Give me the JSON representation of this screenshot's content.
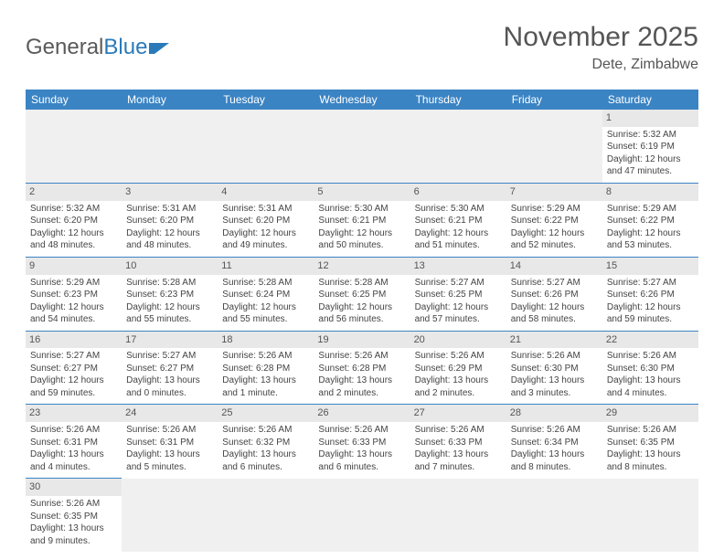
{
  "logo": {
    "part1": "General",
    "part2": "Blue"
  },
  "title": "November 2025",
  "location": "Dete, Zimbabwe",
  "colors": {
    "header_bg": "#3b84c4",
    "header_fg": "#ffffff",
    "daynum_bg": "#e8e8e8",
    "row_divider": "#3b84c4",
    "empty_bg": "#f0f0f0",
    "logo_blue": "#2a7ab9",
    "logo_gray": "#5a5a5a"
  },
  "day_headers": [
    "Sunday",
    "Monday",
    "Tuesday",
    "Wednesday",
    "Thursday",
    "Friday",
    "Saturday"
  ],
  "weeks": [
    [
      null,
      null,
      null,
      null,
      null,
      null,
      {
        "n": "1",
        "sunrise": "Sunrise: 5:32 AM",
        "sunset": "Sunset: 6:19 PM",
        "daylight": "Daylight: 12 hours and 47 minutes."
      }
    ],
    [
      {
        "n": "2",
        "sunrise": "Sunrise: 5:32 AM",
        "sunset": "Sunset: 6:20 PM",
        "daylight": "Daylight: 12 hours and 48 minutes."
      },
      {
        "n": "3",
        "sunrise": "Sunrise: 5:31 AM",
        "sunset": "Sunset: 6:20 PM",
        "daylight": "Daylight: 12 hours and 48 minutes."
      },
      {
        "n": "4",
        "sunrise": "Sunrise: 5:31 AM",
        "sunset": "Sunset: 6:20 PM",
        "daylight": "Daylight: 12 hours and 49 minutes."
      },
      {
        "n": "5",
        "sunrise": "Sunrise: 5:30 AM",
        "sunset": "Sunset: 6:21 PM",
        "daylight": "Daylight: 12 hours and 50 minutes."
      },
      {
        "n": "6",
        "sunrise": "Sunrise: 5:30 AM",
        "sunset": "Sunset: 6:21 PM",
        "daylight": "Daylight: 12 hours and 51 minutes."
      },
      {
        "n": "7",
        "sunrise": "Sunrise: 5:29 AM",
        "sunset": "Sunset: 6:22 PM",
        "daylight": "Daylight: 12 hours and 52 minutes."
      },
      {
        "n": "8",
        "sunrise": "Sunrise: 5:29 AM",
        "sunset": "Sunset: 6:22 PM",
        "daylight": "Daylight: 12 hours and 53 minutes."
      }
    ],
    [
      {
        "n": "9",
        "sunrise": "Sunrise: 5:29 AM",
        "sunset": "Sunset: 6:23 PM",
        "daylight": "Daylight: 12 hours and 54 minutes."
      },
      {
        "n": "10",
        "sunrise": "Sunrise: 5:28 AM",
        "sunset": "Sunset: 6:23 PM",
        "daylight": "Daylight: 12 hours and 55 minutes."
      },
      {
        "n": "11",
        "sunrise": "Sunrise: 5:28 AM",
        "sunset": "Sunset: 6:24 PM",
        "daylight": "Daylight: 12 hours and 55 minutes."
      },
      {
        "n": "12",
        "sunrise": "Sunrise: 5:28 AM",
        "sunset": "Sunset: 6:25 PM",
        "daylight": "Daylight: 12 hours and 56 minutes."
      },
      {
        "n": "13",
        "sunrise": "Sunrise: 5:27 AM",
        "sunset": "Sunset: 6:25 PM",
        "daylight": "Daylight: 12 hours and 57 minutes."
      },
      {
        "n": "14",
        "sunrise": "Sunrise: 5:27 AM",
        "sunset": "Sunset: 6:26 PM",
        "daylight": "Daylight: 12 hours and 58 minutes."
      },
      {
        "n": "15",
        "sunrise": "Sunrise: 5:27 AM",
        "sunset": "Sunset: 6:26 PM",
        "daylight": "Daylight: 12 hours and 59 minutes."
      }
    ],
    [
      {
        "n": "16",
        "sunrise": "Sunrise: 5:27 AM",
        "sunset": "Sunset: 6:27 PM",
        "daylight": "Daylight: 12 hours and 59 minutes."
      },
      {
        "n": "17",
        "sunrise": "Sunrise: 5:27 AM",
        "sunset": "Sunset: 6:27 PM",
        "daylight": "Daylight: 13 hours and 0 minutes."
      },
      {
        "n": "18",
        "sunrise": "Sunrise: 5:26 AM",
        "sunset": "Sunset: 6:28 PM",
        "daylight": "Daylight: 13 hours and 1 minute."
      },
      {
        "n": "19",
        "sunrise": "Sunrise: 5:26 AM",
        "sunset": "Sunset: 6:28 PM",
        "daylight": "Daylight: 13 hours and 2 minutes."
      },
      {
        "n": "20",
        "sunrise": "Sunrise: 5:26 AM",
        "sunset": "Sunset: 6:29 PM",
        "daylight": "Daylight: 13 hours and 2 minutes."
      },
      {
        "n": "21",
        "sunrise": "Sunrise: 5:26 AM",
        "sunset": "Sunset: 6:30 PM",
        "daylight": "Daylight: 13 hours and 3 minutes."
      },
      {
        "n": "22",
        "sunrise": "Sunrise: 5:26 AM",
        "sunset": "Sunset: 6:30 PM",
        "daylight": "Daylight: 13 hours and 4 minutes."
      }
    ],
    [
      {
        "n": "23",
        "sunrise": "Sunrise: 5:26 AM",
        "sunset": "Sunset: 6:31 PM",
        "daylight": "Daylight: 13 hours and 4 minutes."
      },
      {
        "n": "24",
        "sunrise": "Sunrise: 5:26 AM",
        "sunset": "Sunset: 6:31 PM",
        "daylight": "Daylight: 13 hours and 5 minutes."
      },
      {
        "n": "25",
        "sunrise": "Sunrise: 5:26 AM",
        "sunset": "Sunset: 6:32 PM",
        "daylight": "Daylight: 13 hours and 6 minutes."
      },
      {
        "n": "26",
        "sunrise": "Sunrise: 5:26 AM",
        "sunset": "Sunset: 6:33 PM",
        "daylight": "Daylight: 13 hours and 6 minutes."
      },
      {
        "n": "27",
        "sunrise": "Sunrise: 5:26 AM",
        "sunset": "Sunset: 6:33 PM",
        "daylight": "Daylight: 13 hours and 7 minutes."
      },
      {
        "n": "28",
        "sunrise": "Sunrise: 5:26 AM",
        "sunset": "Sunset: 6:34 PM",
        "daylight": "Daylight: 13 hours and 8 minutes."
      },
      {
        "n": "29",
        "sunrise": "Sunrise: 5:26 AM",
        "sunset": "Sunset: 6:35 PM",
        "daylight": "Daylight: 13 hours and 8 minutes."
      }
    ],
    [
      {
        "n": "30",
        "sunrise": "Sunrise: 5:26 AM",
        "sunset": "Sunset: 6:35 PM",
        "daylight": "Daylight: 13 hours and 9 minutes."
      },
      null,
      null,
      null,
      null,
      null,
      null
    ]
  ]
}
